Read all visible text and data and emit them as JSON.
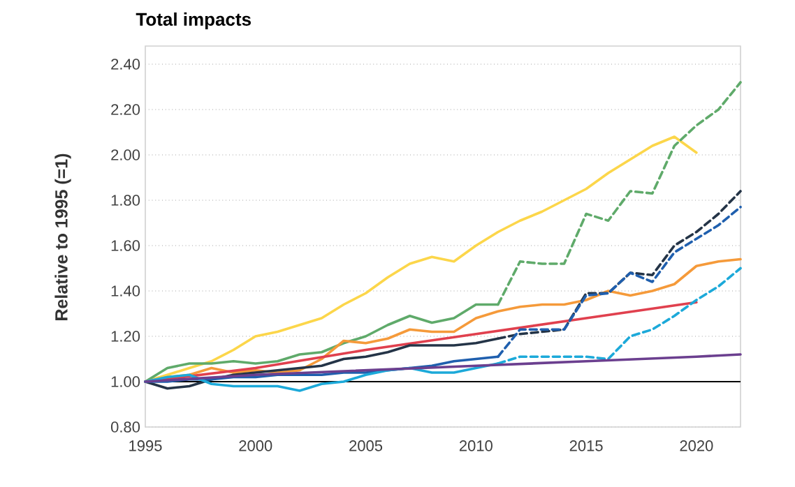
{
  "chart_data": {
    "type": "line",
    "title": "Total impacts",
    "ylabel": "Relative to 1995 (=1)",
    "xlim": [
      1995,
      2022
    ],
    "ylim": [
      0.8,
      2.48
    ],
    "xticks": [
      1995,
      2000,
      2005,
      2010,
      2015,
      2020
    ],
    "yticks": [
      {
        "value": 0.8,
        "label": "0.80"
      },
      {
        "value": 1.0,
        "label": "1.00"
      },
      {
        "value": 1.2,
        "label": "1.20"
      },
      {
        "value": 1.4,
        "label": "1.40"
      },
      {
        "value": 1.6,
        "label": "1.60"
      },
      {
        "value": 1.8,
        "label": "1.80"
      },
      {
        "value": 2.0,
        "label": "2.00"
      },
      {
        "value": 2.2,
        "label": "2.20"
      },
      {
        "value": 2.4,
        "label": "2.40"
      }
    ],
    "grid": "y",
    "marker": "none",
    "ref_lines": [
      {
        "axis": "y",
        "value": 1.0,
        "color": "#000000",
        "line_style": "solid"
      }
    ],
    "series": [
      {
        "color": "#fcd64a",
        "line_style": "solid",
        "x": [
          1995,
          1996,
          1997,
          1998,
          1999,
          2000,
          2001,
          2002,
          2003,
          2004,
          2005,
          2006,
          2007,
          2008,
          2009,
          2010,
          2011,
          2012,
          2013,
          2014,
          2015,
          2016,
          2017,
          2018,
          2019,
          2020
        ],
        "values": [
          1.0,
          1.03,
          1.06,
          1.09,
          1.14,
          1.2,
          1.22,
          1.25,
          1.28,
          1.34,
          1.39,
          1.46,
          1.52,
          1.55,
          1.53,
          1.6,
          1.66,
          1.71,
          1.75,
          1.8,
          1.85,
          1.92,
          1.98,
          2.04,
          2.08,
          2.01
        ]
      },
      {
        "color": "#5faa6a",
        "line_style": "solid",
        "x": [
          1995,
          1996,
          1997,
          1998,
          1999,
          2000,
          2001,
          2002,
          2003,
          2004,
          2005,
          2006,
          2007,
          2008,
          2009,
          2010,
          2011
        ],
        "values": [
          1.0,
          1.06,
          1.08,
          1.08,
          1.09,
          1.08,
          1.09,
          1.12,
          1.13,
          1.17,
          1.2,
          1.25,
          1.29,
          1.26,
          1.28,
          1.34,
          1.34
        ]
      },
      {
        "color": "#5faa6a",
        "line_style": "dashed",
        "x": [
          2011,
          2012,
          2013,
          2014,
          2015,
          2016,
          2017,
          2018,
          2019,
          2020,
          2021,
          2022
        ],
        "values": [
          1.34,
          1.53,
          1.52,
          1.52,
          1.74,
          1.71,
          1.84,
          1.83,
          2.04,
          2.13,
          2.2,
          2.32
        ]
      },
      {
        "color": "#f59a3a",
        "line_style": "solid",
        "x": [
          1995,
          1996,
          1997,
          1998,
          1999,
          2000,
          2001,
          2002,
          2003,
          2004,
          2005,
          2006,
          2007,
          2008,
          2009,
          2010,
          2011,
          2012,
          2013,
          2014,
          2015,
          2016,
          2017,
          2018,
          2019,
          2020,
          2021,
          2022
        ],
        "values": [
          1.0,
          1.02,
          1.03,
          1.06,
          1.04,
          1.05,
          1.04,
          1.05,
          1.1,
          1.18,
          1.17,
          1.19,
          1.23,
          1.22,
          1.22,
          1.28,
          1.31,
          1.33,
          1.34,
          1.34,
          1.36,
          1.4,
          1.38,
          1.4,
          1.43,
          1.51,
          1.53,
          1.54
        ]
      },
      {
        "color": "#e0404e",
        "line_style": "solid",
        "x": [
          1995,
          2000,
          2005,
          2010,
          2015,
          2020
        ],
        "values": [
          1.0,
          1.06,
          1.14,
          1.21,
          1.28,
          1.35
        ]
      },
      {
        "color": "#243447",
        "line_style": "solid",
        "x": [
          1995,
          1996,
          1997,
          1998,
          1999,
          2000,
          2001,
          2002,
          2003,
          2004,
          2005,
          2006,
          2007,
          2008,
          2009,
          2010,
          2011
        ],
        "values": [
          1.0,
          0.97,
          0.98,
          1.01,
          1.03,
          1.04,
          1.05,
          1.06,
          1.07,
          1.1,
          1.11,
          1.13,
          1.16,
          1.16,
          1.16,
          1.17,
          1.19
        ]
      },
      {
        "color": "#243447",
        "line_style": "dashed",
        "x": [
          2011,
          2012,
          2013,
          2014,
          2015,
          2016,
          2017,
          2018,
          2019,
          2020,
          2021,
          2022
        ],
        "values": [
          1.19,
          1.21,
          1.22,
          1.23,
          1.39,
          1.39,
          1.48,
          1.47,
          1.6,
          1.66,
          1.74,
          1.84
        ]
      },
      {
        "color": "#1f5fae",
        "line_style": "solid",
        "x": [
          1995,
          1996,
          1997,
          1998,
          1999,
          2000,
          2001,
          2002,
          2003,
          2004,
          2005,
          2006,
          2007,
          2008,
          2009,
          2010,
          2011
        ],
        "values": [
          1.0,
          1.0,
          1.01,
          1.01,
          1.02,
          1.02,
          1.03,
          1.03,
          1.03,
          1.04,
          1.04,
          1.05,
          1.06,
          1.07,
          1.09,
          1.1,
          1.11
        ]
      },
      {
        "color": "#1f5fae",
        "line_style": "dashed",
        "x": [
          2011,
          2012,
          2013,
          2014,
          2015,
          2016,
          2017,
          2018,
          2019,
          2020,
          2021,
          2022
        ],
        "values": [
          1.11,
          1.23,
          1.23,
          1.23,
          1.38,
          1.39,
          1.48,
          1.44,
          1.57,
          1.63,
          1.69,
          1.77
        ]
      },
      {
        "color": "#1ca9d9",
        "line_style": "solid",
        "x": [
          1995,
          1996,
          1997,
          1998,
          1999,
          2000,
          2001,
          2002,
          2003,
          2004,
          2005,
          2006,
          2007,
          2008,
          2009,
          2010,
          2011
        ],
        "values": [
          1.0,
          1.02,
          1.03,
          0.99,
          0.98,
          0.98,
          0.98,
          0.96,
          0.99,
          1.0,
          1.03,
          1.05,
          1.06,
          1.04,
          1.04,
          1.06,
          1.08
        ]
      },
      {
        "color": "#1ca9d9",
        "line_style": "dashed",
        "x": [
          2011,
          2012,
          2013,
          2014,
          2015,
          2016,
          2017,
          2018,
          2019,
          2020,
          2021,
          2022
        ],
        "values": [
          1.08,
          1.11,
          1.11,
          1.11,
          1.11,
          1.1,
          1.2,
          1.23,
          1.29,
          1.36,
          1.42,
          1.5
        ]
      },
      {
        "color": "#6b3f8f",
        "line_style": "solid",
        "x": [
          1995,
          2000,
          2005,
          2010,
          2015,
          2020,
          2022
        ],
        "values": [
          1.0,
          1.03,
          1.05,
          1.07,
          1.09,
          1.11,
          1.12
        ]
      }
    ]
  }
}
